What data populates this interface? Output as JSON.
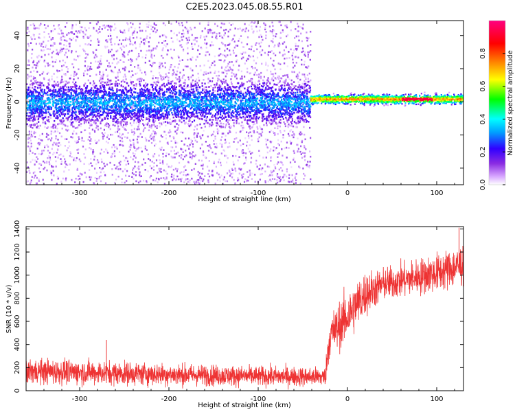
{
  "title": "C2E5.2023.045.08.55.R01",
  "chart_data": [
    {
      "type": "heatmap",
      "xlabel": "Height of straight line (km)",
      "ylabel": "Frequency (Hz)",
      "xlim": [
        -360,
        130
      ],
      "ylim": [
        -50,
        49
      ],
      "xticks": [
        -300,
        -200,
        -100,
        0,
        100
      ],
      "xtick_labels": [
        "-300",
        "-200",
        "-100",
        "0",
        "100"
      ],
      "yticks": [
        -40,
        -20,
        0,
        20,
        40
      ],
      "ytick_labels": [
        "-40",
        "-20",
        "0",
        "20",
        "40"
      ],
      "colorbar": {
        "label": "Normalized spectral amplitude",
        "range": [
          0,
          1
        ],
        "ticks": [
          0,
          0.2,
          0.4,
          0.6,
          0.8
        ],
        "tick_labels": [
          "0.0",
          "0.2",
          "0.4",
          "0.6",
          "0.8"
        ],
        "colors": [
          "#ffffff",
          "#d8a8ff",
          "#8a2be2",
          "#3000ff",
          "#00a0ff",
          "#00ffff",
          "#00ff00",
          "#ffff00",
          "#ff8000",
          "#ff0000",
          "#ff0080"
        ]
      },
      "description_regions": [
        {
          "x_range": [
            -360,
            -42
          ],
          "freq_center": 0,
          "freq_core_halfwidth": 15,
          "freq_scatter_halfwidth": 49,
          "amplitude": "low-medium (0.1-0.45)"
        },
        {
          "x_range": [
            -42,
            130
          ],
          "freq_center": 2,
          "freq_core_halfwidth": 3,
          "amplitude": "high (0.5-1.0)"
        }
      ],
      "grid": false
    },
    {
      "type": "line",
      "xlabel": "Height of straight line (km)",
      "ylabel": "SNR (10 * v/v)",
      "xlim": [
        -360,
        130
      ],
      "ylim": [
        0,
        1420
      ],
      "xticks": [
        -300,
        -200,
        -100,
        0,
        100
      ],
      "xtick_labels": [
        "-300",
        "-200",
        "-100",
        "0",
        "100"
      ],
      "yticks": [
        0,
        200,
        400,
        600,
        800,
        1000,
        1200,
        1400
      ],
      "ytick_labels": [
        "0",
        "200",
        "400",
        "600",
        "800",
        "1000",
        "1200",
        "1400"
      ],
      "color": "#ee3333",
      "envelope": [
        {
          "x": -360,
          "low": 40,
          "mid": 170,
          "high": 310
        },
        {
          "x": -300,
          "low": 40,
          "mid": 160,
          "high": 300
        },
        {
          "x": -200,
          "low": 25,
          "mid": 140,
          "high": 260
        },
        {
          "x": -100,
          "low": 20,
          "mid": 125,
          "high": 230
        },
        {
          "x": -25,
          "low": 15,
          "mid": 120,
          "high": 220
        },
        {
          "x": -20,
          "low": 250,
          "mid": 470,
          "high": 720
        },
        {
          "x": 0,
          "low": 400,
          "mid": 640,
          "high": 950
        },
        {
          "x": 20,
          "low": 600,
          "mid": 840,
          "high": 1080
        },
        {
          "x": 40,
          "low": 760,
          "mid": 920,
          "high": 1100
        },
        {
          "x": 100,
          "low": 820,
          "mid": 1020,
          "high": 1230
        },
        {
          "x": 130,
          "low": 880,
          "mid": 1090,
          "high": 1330
        }
      ],
      "annotations": [
        {
          "x": -270,
          "y": 440,
          "note": "spike"
        },
        {
          "x": 125,
          "y": 1410,
          "note": "peak"
        }
      ],
      "grid": false
    }
  ]
}
